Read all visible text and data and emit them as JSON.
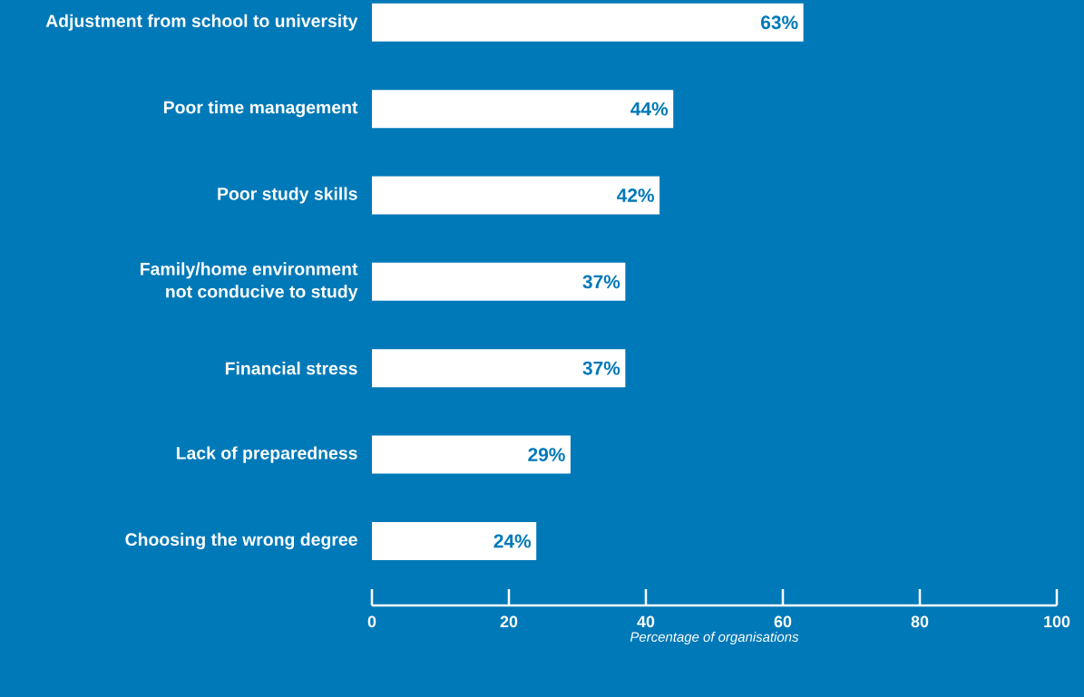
{
  "chart_data": {
    "type": "bar",
    "orientation": "horizontal",
    "categories": [
      "Adjustment from school to university",
      "Poor time management",
      "Poor study skills",
      "Family/home environment not conducive to study",
      "Financial stress",
      "Lack of preparedness",
      "Choosing the wrong degree"
    ],
    "values": [
      63,
      44,
      42,
      37,
      37,
      29,
      24
    ],
    "value_labels": [
      "63%",
      "44%",
      "42%",
      "37%",
      "37%",
      "29%",
      "24%"
    ],
    "color": "#ffffff",
    "xlabel": "Percentage of organisations",
    "xlim": [
      0,
      100
    ],
    "xticks": [
      0,
      20,
      40,
      60,
      80,
      100
    ],
    "grid": false
  }
}
